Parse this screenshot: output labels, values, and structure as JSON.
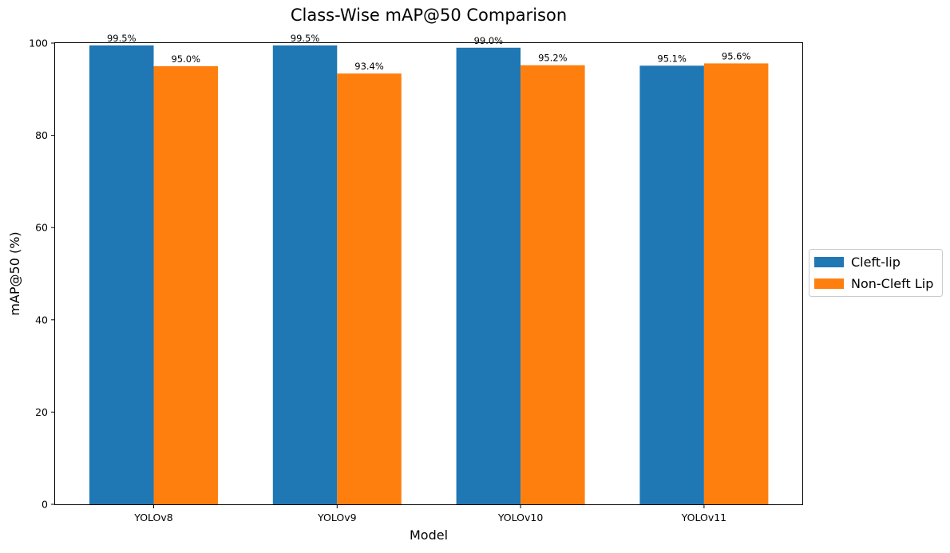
{
  "chart_data": {
    "type": "bar",
    "title": "Class-Wise mAP@50 Comparison",
    "xlabel": "Model",
    "ylabel": "mAP@50 (%)",
    "categories": [
      "YOLOv8",
      "YOLOv9",
      "YOLOv10",
      "YOLOv11"
    ],
    "series": [
      {
        "name": "Cleft-lip",
        "values": [
          99.5,
          99.5,
          99.0,
          95.1
        ],
        "labels": [
          "99.5%",
          "99.5%",
          "99.0%",
          "95.1%"
        ],
        "color": "#1f77b4"
      },
      {
        "name": "Non-Cleft Lip",
        "values": [
          95.0,
          93.4,
          95.2,
          95.6
        ],
        "labels": [
          "95.0%",
          "93.4%",
          "95.2%",
          "95.6%"
        ],
        "color": "#ff7f0e"
      }
    ],
    "ylim": [
      0,
      100
    ],
    "yticks": [
      0,
      20,
      40,
      60,
      80,
      100
    ],
    "ytick_labels": [
      "0",
      "20",
      "40",
      "60",
      "80",
      "100"
    ],
    "grid": false,
    "legend_position": "outside-right"
  }
}
